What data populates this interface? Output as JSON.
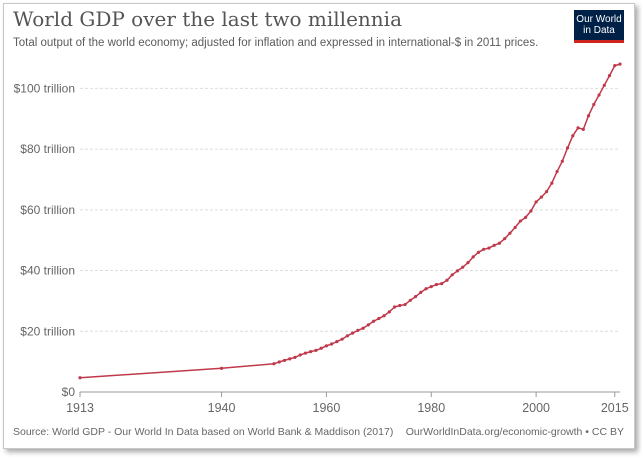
{
  "chart_data": {
    "type": "line",
    "title": "World GDP over the last two millennia",
    "subtitle": "Total output of the world economy; adjusted for inflation and expressed in international-$ in 2011 prices.",
    "ylim": [
      0,
      110
    ],
    "xlim": [
      1913,
      2016
    ],
    "y_ticks": [
      {
        "v": 0,
        "label": "$0"
      },
      {
        "v": 20,
        "label": "$20 trillion"
      },
      {
        "v": 40,
        "label": "$40 trillion"
      },
      {
        "v": 60,
        "label": "$60 trillion"
      },
      {
        "v": 80,
        "label": "$80 trillion"
      },
      {
        "v": 100,
        "label": "$100 trillion"
      }
    ],
    "x_ticks": [
      {
        "v": 1913,
        "label": "1913"
      },
      {
        "v": 1940,
        "label": "1940"
      },
      {
        "v": 1960,
        "label": "1960"
      },
      {
        "v": 1980,
        "label": "1980"
      },
      {
        "v": 2000,
        "label": "2000"
      },
      {
        "v": 2015,
        "label": "2015"
      }
    ],
    "grid": true,
    "line_color": "#c0394b",
    "series": [
      {
        "name": "World",
        "x": [
          1913,
          1940,
          1950,
          1951,
          1952,
          1953,
          1954,
          1955,
          1956,
          1957,
          1958,
          1959,
          1960,
          1961,
          1962,
          1963,
          1964,
          1965,
          1966,
          1967,
          1968,
          1969,
          1970,
          1971,
          1972,
          1973,
          1974,
          1975,
          1976,
          1977,
          1978,
          1979,
          1980,
          1981,
          1982,
          1983,
          1984,
          1985,
          1986,
          1987,
          1988,
          1989,
          1990,
          1991,
          1992,
          1993,
          1994,
          1995,
          1996,
          1997,
          1998,
          1999,
          2000,
          2001,
          2002,
          2003,
          2004,
          2005,
          2006,
          2007,
          2008,
          2009,
          2010,
          2011,
          2012,
          2013,
          2014,
          2015,
          2016
        ],
        "y": [
          4.7,
          7.8,
          9.3,
          9.9,
          10.4,
          10.9,
          11.4,
          12.2,
          12.8,
          13.3,
          13.7,
          14.4,
          15.2,
          15.8,
          16.6,
          17.4,
          18.5,
          19.4,
          20.3,
          21.0,
          22.1,
          23.3,
          24.2,
          25.1,
          26.4,
          28.0,
          28.5,
          28.8,
          30.2,
          31.4,
          32.8,
          34.0,
          34.7,
          35.4,
          35.7,
          36.8,
          38.6,
          39.9,
          41.1,
          42.6,
          44.5,
          46.0,
          47.0,
          47.4,
          48.3,
          49.0,
          50.5,
          52.3,
          54.2,
          56.3,
          57.5,
          59.6,
          62.6,
          64.2,
          66.0,
          68.8,
          72.6,
          76.0,
          80.4,
          84.4,
          87.0,
          86.5,
          91.0,
          94.7,
          97.8,
          101.0,
          104.2,
          107.5,
          108.0
        ]
      }
    ]
  },
  "logo": {
    "line1": "Our World",
    "line2": "in Data"
  },
  "footer": {
    "source": "Source: World GDP - Our World In Data based on World Bank & Maddison (2017)",
    "link": "OurWorldInData.org/economic-growth • CC BY"
  }
}
